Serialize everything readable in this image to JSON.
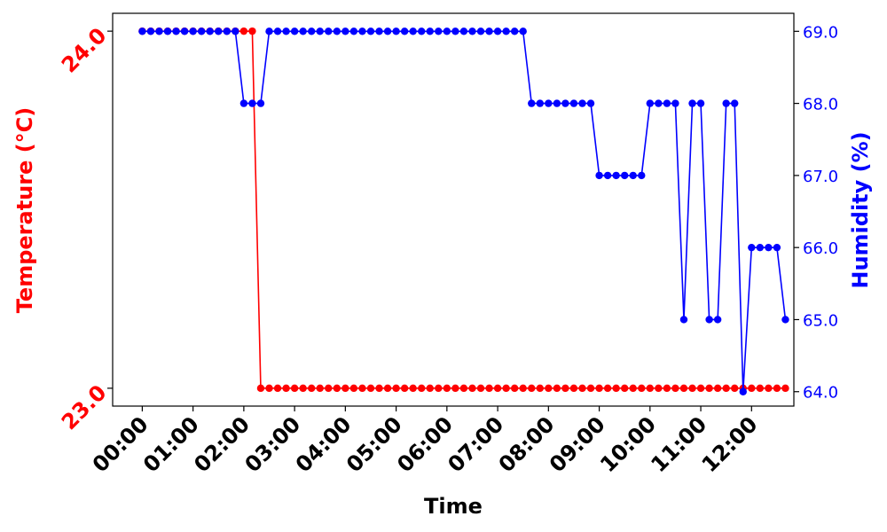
{
  "chart_data": {
    "type": "line",
    "xlabel": "Time",
    "ylabel_left": "Temperature (°C)",
    "ylabel_right": "Humidity (%)",
    "x_ticks": [
      "00:00",
      "01:00",
      "02:00",
      "03:00",
      "04:00",
      "05:00",
      "06:00",
      "07:00",
      "08:00",
      "09:00",
      "10:00",
      "11:00",
      "12:00"
    ],
    "y_left_ticks": [
      "23.0",
      "24.0"
    ],
    "y_right_ticks": [
      "64.0",
      "65.0",
      "66.0",
      "67.0",
      "68.0",
      "69.0"
    ],
    "y_left_lim": [
      22.95,
      24.05
    ],
    "y_right_lim": [
      63.8,
      69.25
    ],
    "x_lim_minutes": [
      -35,
      770
    ],
    "grid": false,
    "colors": {
      "temperature": "#ff0000",
      "humidity": "#0000ff",
      "left_axis": "#ff0000",
      "right_axis": "#0000ff"
    },
    "interval_minutes": 10,
    "start_time": "00:00",
    "series": [
      {
        "axis": "left",
        "values": [
          24,
          24,
          24,
          24,
          24,
          24,
          24,
          24,
          24,
          24,
          24,
          24,
          24,
          24,
          23,
          23,
          23,
          23,
          23,
          23,
          23,
          23,
          23,
          23,
          23,
          23,
          23,
          23,
          23,
          23,
          23,
          23,
          23,
          23,
          23,
          23,
          23,
          23,
          23,
          23,
          23,
          23,
          23,
          23,
          23,
          23,
          23,
          23,
          23,
          23,
          23,
          23,
          23,
          23,
          23,
          23,
          23,
          23,
          23,
          23,
          23,
          23,
          23,
          23,
          23,
          23,
          23,
          23,
          23,
          23,
          23,
          23,
          23,
          23,
          23,
          23,
          23
        ]
      },
      {
        "axis": "right",
        "values": [
          69,
          69,
          69,
          69,
          69,
          69,
          69,
          69,
          69,
          69,
          69,
          69,
          68,
          68,
          68,
          69,
          69,
          69,
          69,
          69,
          69,
          69,
          69,
          69,
          69,
          69,
          69,
          69,
          69,
          69,
          69,
          69,
          69,
          69,
          69,
          69,
          69,
          69,
          69,
          69,
          69,
          69,
          69,
          69,
          69,
          69,
          68,
          68,
          68,
          68,
          68,
          68,
          68,
          68,
          67,
          67,
          67,
          67,
          67,
          67,
          68,
          68,
          68,
          68,
          65,
          68,
          68,
          65,
          65,
          68,
          68,
          64,
          66,
          66,
          66,
          66,
          65
        ]
      }
    ]
  }
}
